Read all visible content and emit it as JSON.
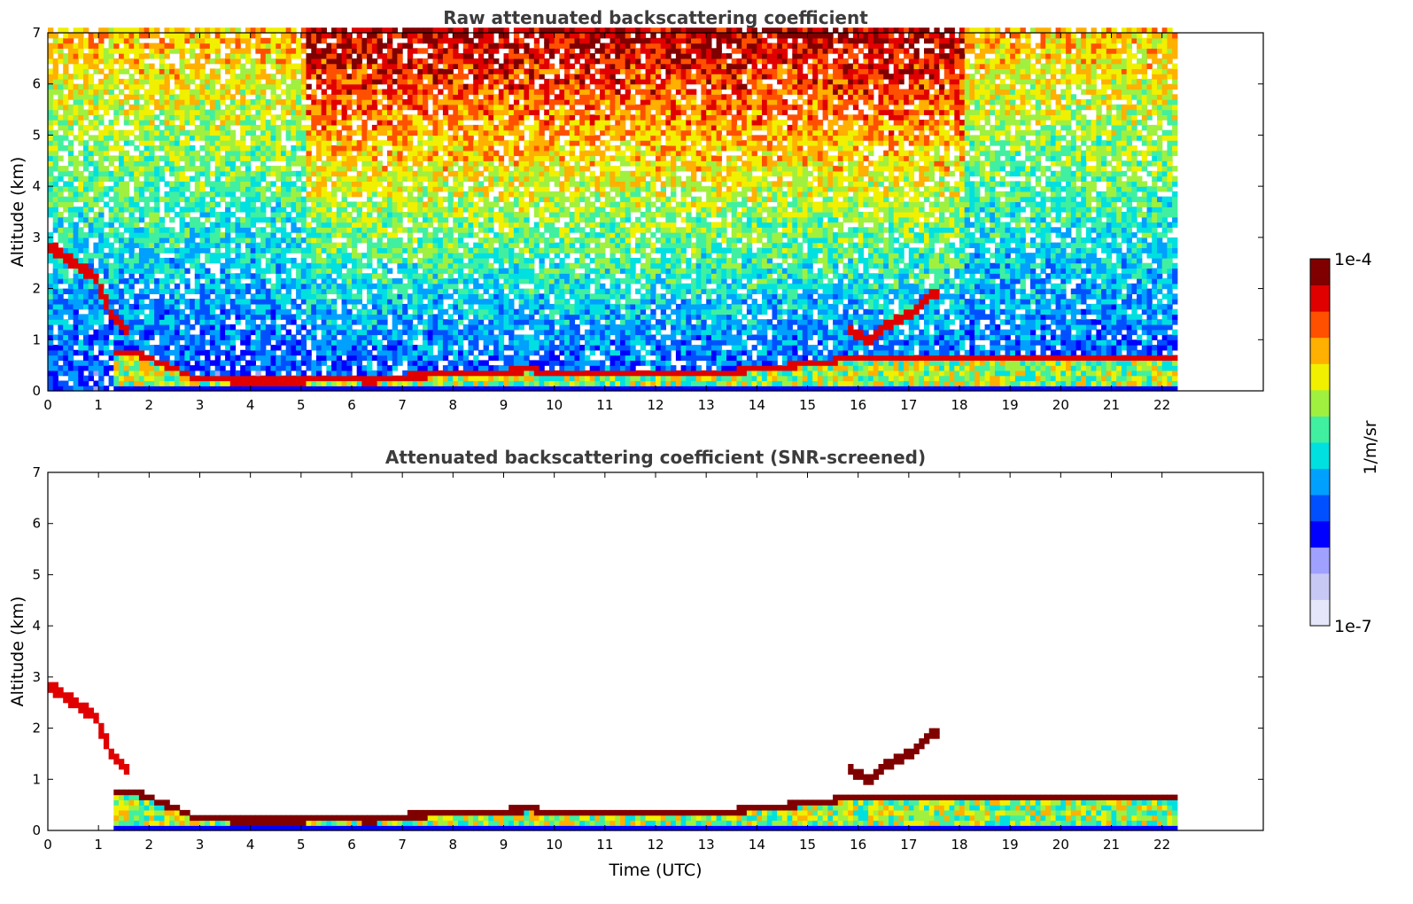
{
  "chart_data": [
    {
      "type": "heatmap",
      "title": "Raw attenuated backscattering coefficient",
      "xlabel": "",
      "ylabel": "Altitude (km)",
      "xlim": [
        0,
        24
      ],
      "ylim": [
        0,
        7
      ],
      "xticks": [
        0,
        1,
        2,
        3,
        4,
        5,
        6,
        7,
        8,
        9,
        10,
        11,
        12,
        13,
        14,
        15,
        16,
        17,
        18,
        19,
        20,
        21,
        22
      ],
      "yticks": [
        0,
        1,
        2,
        3,
        4,
        5,
        6,
        7
      ],
      "data_end_time": 22.3,
      "screened": false,
      "boundary_layer_top_km": [
        [
          1.3,
          0.85
        ],
        [
          1.7,
          0.8
        ],
        [
          2.2,
          0.6
        ],
        [
          2.8,
          0.35
        ],
        [
          3.0,
          0.3
        ],
        [
          4.0,
          0.25
        ],
        [
          5.0,
          0.27
        ],
        [
          6.0,
          0.3
        ],
        [
          6.3,
          0.25
        ],
        [
          7.0,
          0.35
        ],
        [
          8.0,
          0.4
        ],
        [
          9.0,
          0.45
        ],
        [
          9.5,
          0.48
        ],
        [
          10.0,
          0.4
        ],
        [
          11.0,
          0.38
        ],
        [
          12.0,
          0.45
        ],
        [
          13.0,
          0.45
        ],
        [
          13.5,
          0.45
        ],
        [
          14.0,
          0.5
        ],
        [
          15.0,
          0.6
        ],
        [
          15.8,
          0.7
        ]
      ],
      "elevated_layer_km": [
        [
          0.0,
          2.8
        ],
        [
          0.5,
          2.5
        ],
        [
          0.9,
          2.2
        ],
        [
          1.2,
          1.5
        ],
        [
          1.5,
          1.2
        ]
      ],
      "residual_layer_km": [
        [
          15.8,
          1.2
        ],
        [
          16.2,
          0.95
        ],
        [
          16.5,
          1.3
        ],
        [
          17.0,
          1.55
        ],
        [
          17.4,
          1.9
        ]
      ]
    },
    {
      "type": "heatmap",
      "title": "Attenuated backscattering coefficient (SNR-screened)",
      "xlabel": "Time (UTC)",
      "ylabel": "Altitude (km)",
      "xlim": [
        0,
        24
      ],
      "ylim": [
        0,
        7
      ],
      "xticks": [
        0,
        1,
        2,
        3,
        4,
        5,
        6,
        7,
        8,
        9,
        10,
        11,
        12,
        13,
        14,
        15,
        16,
        17,
        18,
        19,
        20,
        21,
        22
      ],
      "yticks": [
        0,
        1,
        2,
        3,
        4,
        5,
        6,
        7
      ],
      "data_end_time": 22.3,
      "screened": true,
      "boundary_layer_top_km": [
        [
          1.3,
          0.85
        ],
        [
          1.7,
          0.8
        ],
        [
          2.2,
          0.6
        ],
        [
          2.8,
          0.35
        ],
        [
          3.0,
          0.3
        ],
        [
          4.0,
          0.25
        ],
        [
          5.0,
          0.27
        ],
        [
          6.0,
          0.3
        ],
        [
          6.3,
          0.25
        ],
        [
          7.0,
          0.35
        ],
        [
          8.0,
          0.4
        ],
        [
          9.0,
          0.45
        ],
        [
          9.5,
          0.48
        ],
        [
          10.0,
          0.4
        ],
        [
          11.0,
          0.38
        ],
        [
          12.0,
          0.45
        ],
        [
          13.0,
          0.45
        ],
        [
          13.5,
          0.45
        ],
        [
          14.0,
          0.5
        ],
        [
          15.0,
          0.6
        ],
        [
          15.8,
          0.7
        ]
      ],
      "elevated_layer_km": [
        [
          0.0,
          2.8
        ],
        [
          0.5,
          2.5
        ],
        [
          0.9,
          2.2
        ],
        [
          1.2,
          1.5
        ],
        [
          1.5,
          1.2
        ]
      ],
      "residual_layer_km": [
        [
          15.8,
          1.2
        ],
        [
          16.2,
          0.95
        ],
        [
          16.5,
          1.3
        ],
        [
          17.0,
          1.55
        ],
        [
          17.4,
          1.9
        ]
      ]
    }
  ],
  "colorbar": {
    "min_label": "1e-7",
    "max_label": "1e-4",
    "label": "1/m/sr",
    "scale": "log",
    "colors": [
      "#e6e6fa",
      "#c8c8f5",
      "#a0a0ff",
      "#0000ff",
      "#0050ff",
      "#00a0ff",
      "#00e0e0",
      "#40f0a0",
      "#a0f040",
      "#f0f000",
      "#ffb000",
      "#ff5000",
      "#e00000",
      "#800000"
    ]
  }
}
